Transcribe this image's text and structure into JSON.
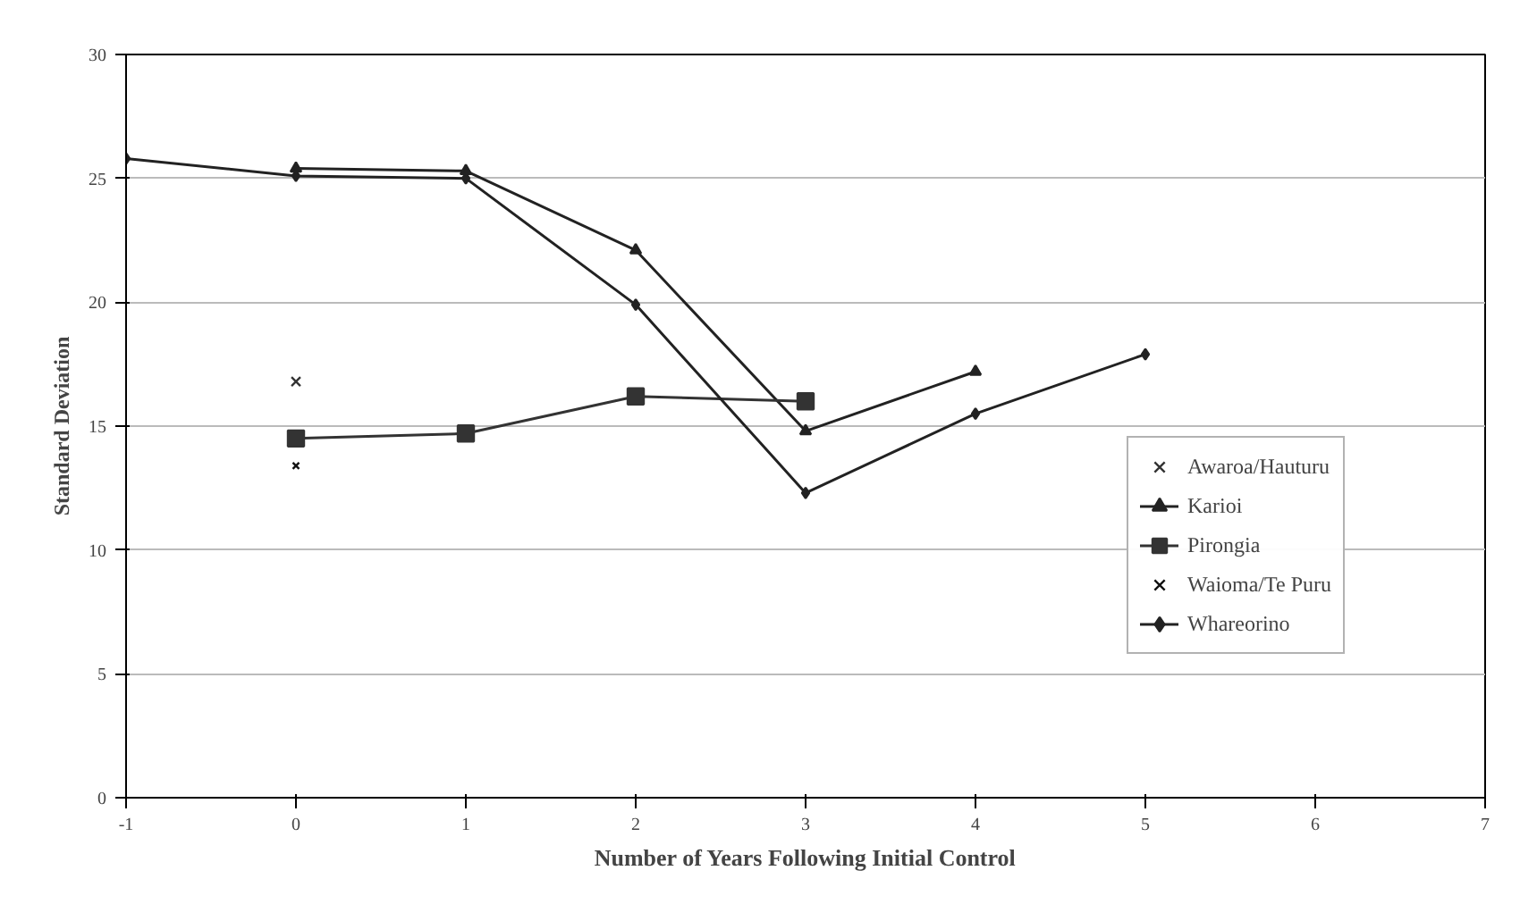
{
  "chart_data": {
    "type": "line",
    "xlabel": "Number of Years Following Initial Control",
    "ylabel": "Standard Deviation",
    "xlim": [
      -1,
      7
    ],
    "xticks": [
      -1,
      0,
      1,
      2,
      3,
      4,
      5,
      6,
      7
    ],
    "ylim": [
      0,
      30
    ],
    "yticks": [
      0,
      5,
      10,
      15,
      20,
      25,
      30
    ],
    "grid": "y",
    "legend": "right",
    "series": [
      {
        "name": "Awaroa/Hauturu",
        "type": "scatter",
        "marker": "cross",
        "color": "#333333",
        "x": [
          0
        ],
        "values": [
          16.8
        ]
      },
      {
        "name": "Karioi",
        "marker": "triangle",
        "color": "#222222",
        "x": [
          0,
          1,
          2,
          3,
          4
        ],
        "values": [
          25.4,
          25.3,
          22.1,
          14.8,
          17.2
        ]
      },
      {
        "name": "Pirongia",
        "marker": "square",
        "color": "#333333",
        "x": [
          0,
          1,
          2,
          3
        ],
        "values": [
          14.5,
          14.7,
          16.2,
          16.0
        ]
      },
      {
        "name": "Waioma/Te Puru",
        "type": "scatter",
        "marker": "cross",
        "color": "#111111",
        "x": [
          0
        ],
        "values": [
          13.4
        ]
      },
      {
        "name": "Whareorino",
        "marker": "diamond",
        "color": "#222222",
        "x": [
          -1,
          0,
          1,
          2,
          3,
          4,
          5
        ],
        "values": [
          25.8,
          25.1,
          25.0,
          19.9,
          12.3,
          15.5,
          17.9
        ]
      }
    ]
  }
}
